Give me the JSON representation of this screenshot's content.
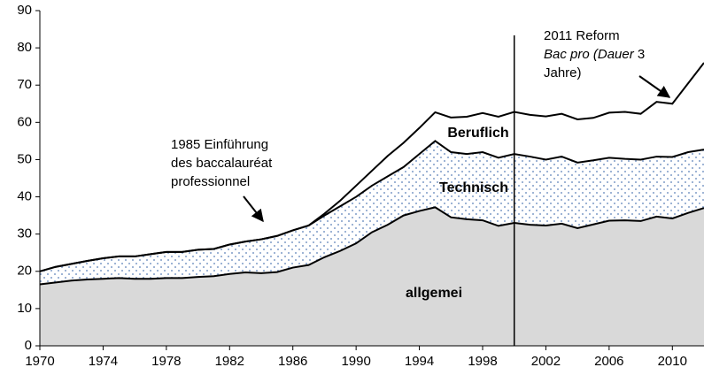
{
  "chart_data": {
    "type": "stacked_area",
    "x": [
      1970,
      1971,
      1972,
      1973,
      1974,
      1975,
      1976,
      1977,
      1978,
      1979,
      1980,
      1981,
      1982,
      1983,
      1984,
      1985,
      1986,
      1987,
      1988,
      1989,
      1990,
      1991,
      1992,
      1993,
      1994,
      1995,
      1996,
      1997,
      1998,
      1999,
      2000,
      2001,
      2002,
      2003,
      2004,
      2005,
      2006,
      2007,
      2008,
      2009,
      2010,
      2011,
      2012
    ],
    "series": [
      {
        "name": "allgemei",
        "color": "#d9d9d9",
        "values": [
          16.5,
          17,
          17.5,
          17.8,
          18,
          18.2,
          18,
          18,
          18.2,
          18.2,
          18.5,
          18.7,
          19.3,
          19.7,
          19.5,
          19.8,
          21,
          21.7,
          23.8,
          25.5,
          27.5,
          30.5,
          32.5,
          35,
          36.2,
          37.2,
          34.5,
          34,
          33.7,
          32.2,
          33,
          32.5,
          32.3,
          32.8,
          31.6,
          32.6,
          33.6,
          33.7,
          33.5,
          34.7,
          34.2,
          35.7,
          37
        ]
      },
      {
        "name": "Technisch",
        "color": "#7f9cc8",
        "values": [
          3.5,
          4.2,
          4.5,
          5,
          5.5,
          5.8,
          6,
          6.6,
          7,
          7,
          7.3,
          7.3,
          7.9,
          8.3,
          9.1,
          9.7,
          10,
          10.6,
          11.2,
          12,
          12.5,
          12.5,
          13,
          13,
          15.3,
          17.8,
          17.5,
          17.5,
          18.3,
          18.3,
          18.5,
          18.3,
          17.7,
          18,
          17.6,
          17.2,
          16.9,
          16.5,
          16.5,
          16.1,
          16.5,
          16.3,
          15.7
        ]
      },
      {
        "name": "Beruflich",
        "color": "#ffffff",
        "values": [
          0,
          0,
          0,
          0,
          0,
          0,
          0,
          0,
          0,
          0,
          0,
          0,
          0,
          0,
          0,
          0,
          0,
          0,
          0.5,
          1.5,
          3,
          4,
          5.5,
          6.5,
          7,
          7.7,
          9.3,
          10,
          10.5,
          11,
          11.3,
          11.2,
          11.6,
          11.5,
          11.6,
          11.4,
          12.1,
          12.6,
          12.3,
          14.7,
          14.3,
          18.5,
          23.3
        ]
      }
    ],
    "xlim": [
      1970,
      2012
    ],
    "xticks": [
      1970,
      1974,
      1978,
      1982,
      1986,
      1990,
      1994,
      1998,
      2002,
      2006,
      2010
    ],
    "ylim": [
      0,
      90
    ],
    "yticks": [
      0,
      10,
      20,
      30,
      40,
      50,
      60,
      70,
      80,
      90
    ],
    "reference_line_x": 2000,
    "annotations": [
      {
        "lines": [
          [
            {
              "text": "1985 Einführung",
              "italic": false
            }
          ],
          [
            {
              "text": "des baccalauréat",
              "italic": false
            }
          ],
          [
            {
              "text": "professionnel",
              "italic": false
            }
          ]
        ]
      },
      {
        "lines": [
          [
            {
              "text": "2011 Reform",
              "italic": false
            }
          ],
          [
            {
              "text": "Bac pro (Dauer",
              "italic": true
            },
            {
              "text": " 3",
              "italic": false
            }
          ],
          [
            {
              "text": "Jahre)",
              "italic": false
            }
          ]
        ]
      }
    ]
  }
}
